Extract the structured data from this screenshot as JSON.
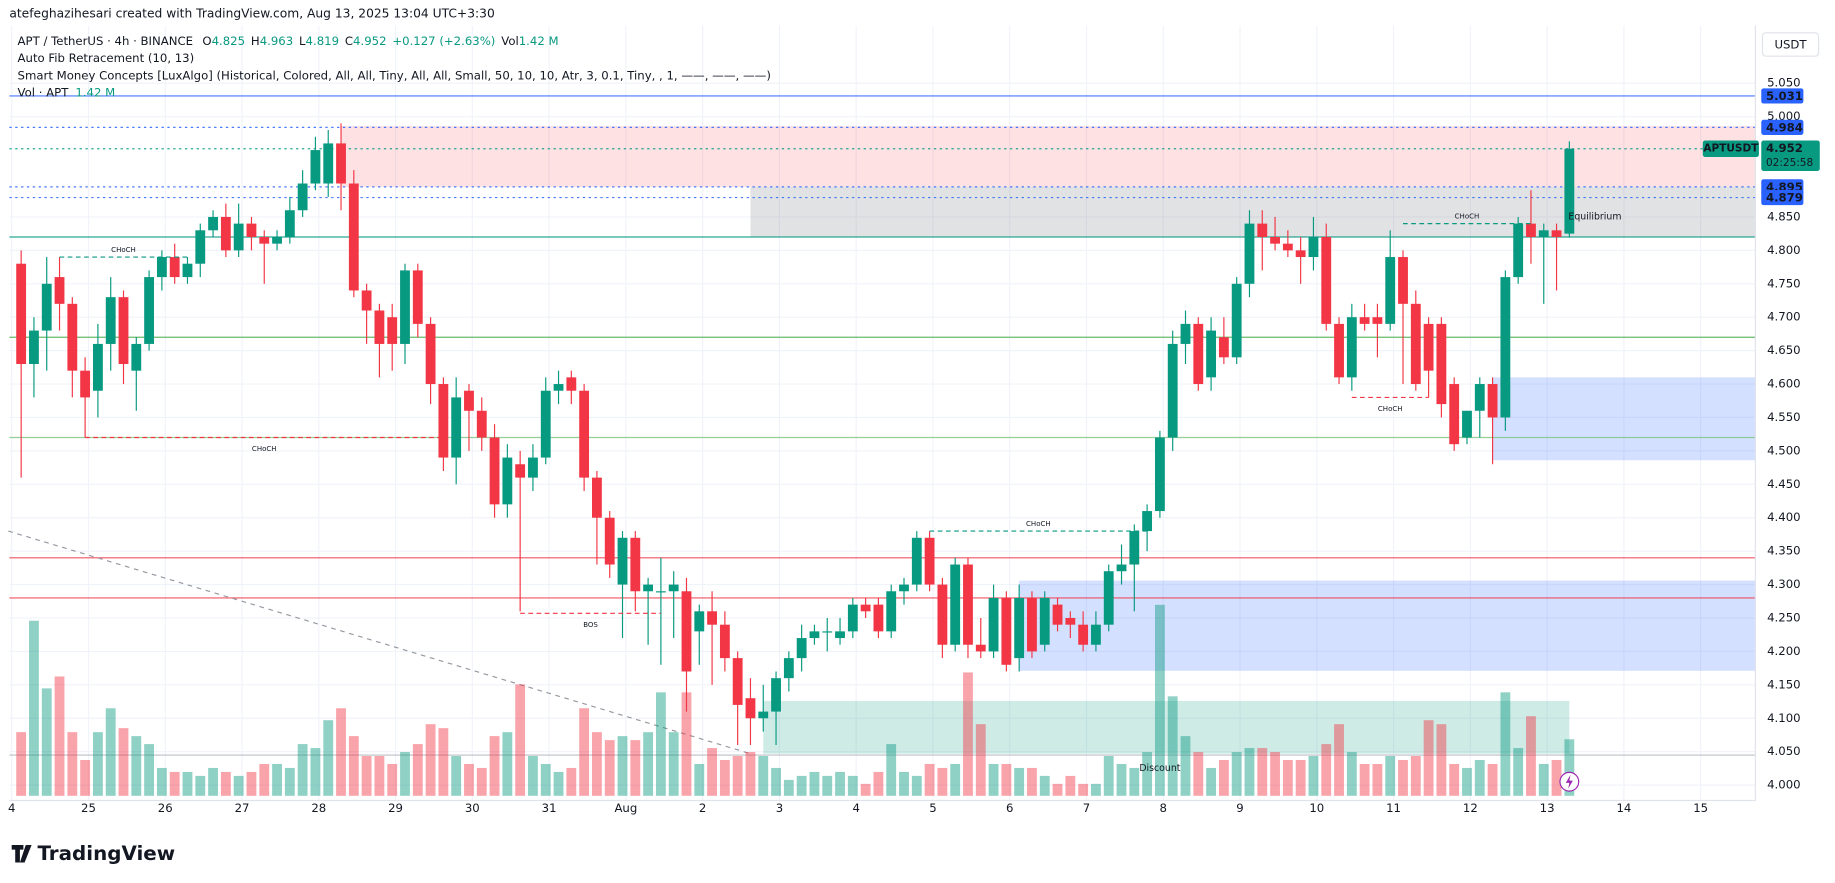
{
  "chart_data": {
    "type": "candlestick",
    "credit": "atefeghazihesari created with TradingView.com, Aug 13, 2025 13:04 UTC+3:30",
    "title": "APT / TetherUS · 4h · BINANCE",
    "ohlc": [
      {
        "label": "O",
        "value": 4.825
      },
      {
        "label": "H",
        "value": 4.963
      },
      {
        "label": "L",
        "value": 4.819
      },
      {
        "label": "C",
        "value": 4.952
      }
    ],
    "change": "+0.127 (+2.63%)",
    "volume_label": "Vol",
    "volume_value_label": "1.42 M",
    "indicators": [
      "Auto Fib Retracement (10, 13)",
      "Smart Money Concepts [LuxAlgo] (Historical, Colored, All, All, Tiny, All, All, Small, 50, 10, 10, Atr, 3, 0.1, Tiny, , 1, ——, ——, ——)"
    ],
    "volume_indicator": "Vol · APT",
    "currency": "USDT",
    "footer": "TradingView",
    "up_color": "#089981",
    "down_color": "#f23645",
    "grid": true,
    "x_labels": [
      "4",
      "25",
      "26",
      "27",
      "28",
      "29",
      "30",
      "31",
      "Aug",
      "2",
      "3",
      "4",
      "5",
      "6",
      "7",
      "8",
      "9",
      "10",
      "11",
      "12",
      "13",
      "14",
      "15"
    ],
    "ylim": [
      3.977,
      5.136
    ],
    "yticks": [
      {
        "value": 4.0,
        "label": "4.000"
      },
      {
        "value": 4.05,
        "label": "4.050"
      },
      {
        "value": 4.1,
        "label": "4.100"
      },
      {
        "value": 4.15,
        "label": "4.150"
      },
      {
        "value": 4.2,
        "label": "4.200"
      },
      {
        "value": 4.25,
        "label": "4.250"
      },
      {
        "value": 4.3,
        "label": "4.300"
      },
      {
        "value": 4.35,
        "label": "4.350"
      },
      {
        "value": 4.4,
        "label": "4.400"
      },
      {
        "value": 4.45,
        "label": "4.450"
      },
      {
        "value": 4.5,
        "label": "4.500"
      },
      {
        "value": 4.55,
        "label": "4.550"
      },
      {
        "value": 4.6,
        "label": "4.600"
      },
      {
        "value": 4.65,
        "label": "4.650"
      },
      {
        "value": 4.7,
        "label": "4.700"
      },
      {
        "value": 4.75,
        "label": "4.750"
      },
      {
        "value": 4.8,
        "label": "4.800"
      },
      {
        "value": 4.85,
        "label": "4.850"
      },
      {
        "value": 5.0,
        "label": "5.000"
      },
      {
        "value": 5.05,
        "label": "5.050"
      }
    ],
    "open": [
      4.78,
      4.63,
      4.68,
      4.76,
      4.72,
      4.62,
      4.59,
      4.66,
      4.73,
      4.62,
      4.66,
      4.76,
      4.79,
      4.76,
      4.78,
      4.83,
      4.85,
      4.8,
      4.84,
      4.82,
      4.81,
      4.82,
      4.86,
      4.9,
      4.9,
      4.96,
      4.9,
      4.74,
      4.71,
      4.7,
      4.66,
      4.77,
      4.69,
      4.6,
      4.49,
      4.59,
      4.56,
      4.52,
      4.42,
      4.48,
      4.46,
      4.49,
      4.59,
      4.61,
      4.59,
      4.46,
      4.4,
      4.3,
      4.37,
      4.29,
      4.29,
      4.29,
      4.29,
      4.23,
      4.26,
      4.24,
      4.19,
      4.13,
      4.1,
      4.11,
      4.16,
      4.19,
      4.22,
      4.23,
      4.22,
      4.23,
      4.27,
      4.27,
      4.23,
      4.29,
      4.3,
      4.37,
      4.3,
      4.21,
      4.33,
      4.21,
      4.2,
      4.28,
      4.19,
      4.28,
      4.21,
      4.27,
      4.25,
      4.24,
      4.21,
      4.24,
      4.32,
      4.33,
      4.38,
      4.41,
      4.52,
      4.66,
      4.69,
      4.61,
      4.67,
      4.64,
      4.75,
      4.84,
      4.82,
      4.81,
      4.8,
      4.79,
      4.82,
      4.69,
      4.61,
      4.7,
      4.7,
      4.69,
      4.79,
      4.72,
      4.69,
      4.69,
      4.6,
      4.52,
      4.56,
      4.6,
      4.55,
      4.76,
      4.84,
      4.82,
      4.83,
      4.825
    ],
    "high": [
      4.8,
      4.7,
      4.79,
      4.79,
      4.73,
      4.64,
      4.69,
      4.76,
      4.74,
      4.67,
      4.77,
      4.8,
      4.81,
      4.79,
      4.84,
      4.86,
      4.87,
      4.87,
      4.85,
      4.83,
      4.83,
      4.88,
      4.92,
      4.97,
      4.98,
      4.99,
      4.92,
      4.75,
      4.72,
      4.72,
      4.78,
      4.78,
      4.7,
      4.61,
      4.61,
      4.6,
      4.58,
      4.54,
      4.51,
      4.5,
      4.51,
      4.61,
      4.62,
      4.62,
      4.6,
      4.47,
      4.41,
      4.38,
      4.38,
      4.31,
      4.34,
      4.32,
      4.31,
      4.27,
      4.29,
      4.26,
      4.2,
      4.16,
      4.15,
      4.17,
      4.2,
      4.24,
      4.24,
      4.25,
      4.25,
      4.28,
      4.28,
      4.28,
      4.3,
      4.31,
      4.38,
      4.38,
      4.31,
      4.34,
      4.34,
      4.25,
      4.3,
      4.29,
      4.3,
      4.29,
      4.29,
      4.28,
      4.26,
      4.26,
      4.26,
      4.33,
      4.36,
      4.39,
      4.42,
      4.53,
      4.68,
      4.71,
      4.7,
      4.7,
      4.7,
      4.76,
      4.86,
      4.86,
      4.85,
      4.83,
      4.82,
      4.85,
      4.84,
      4.7,
      4.72,
      4.72,
      4.72,
      4.83,
      4.8,
      4.74,
      4.7,
      4.7,
      4.61,
      4.56,
      4.61,
      4.61,
      4.77,
      4.85,
      4.89,
      4.84,
      4.84,
      4.963
    ],
    "low": [
      4.46,
      4.58,
      4.62,
      4.68,
      4.58,
      4.52,
      4.55,
      4.62,
      4.6,
      4.56,
      4.65,
      4.74,
      4.75,
      4.75,
      4.76,
      4.82,
      4.79,
      4.79,
      4.8,
      4.75,
      4.8,
      4.81,
      4.85,
      4.89,
      4.88,
      4.86,
      4.73,
      4.66,
      4.61,
      4.62,
      4.63,
      4.67,
      4.57,
      4.47,
      4.45,
      4.5,
      4.5,
      4.4,
      4.4,
      4.26,
      4.44,
      4.48,
      4.57,
      4.57,
      4.44,
      4.33,
      4.31,
      4.22,
      4.26,
      4.21,
      4.18,
      4.22,
      4.11,
      4.18,
      4.15,
      4.17,
      4.06,
      4.06,
      4.08,
      4.06,
      4.14,
      4.17,
      4.21,
      4.2,
      4.21,
      4.22,
      4.25,
      4.22,
      4.22,
      4.27,
      4.29,
      4.29,
      4.19,
      4.2,
      4.19,
      4.19,
      4.19,
      4.17,
      4.17,
      4.19,
      4.2,
      4.23,
      4.22,
      4.2,
      4.2,
      4.23,
      4.3,
      4.26,
      4.35,
      4.4,
      4.5,
      4.63,
      4.59,
      4.59,
      4.63,
      4.63,
      4.73,
      4.77,
      4.8,
      4.79,
      4.75,
      4.77,
      4.68,
      4.6,
      4.59,
      4.68,
      4.64,
      4.68,
      4.6,
      4.59,
      4.58,
      4.55,
      4.5,
      4.51,
      4.52,
      4.48,
      4.53,
      4.75,
      4.78,
      4.72,
      4.74,
      4.819
    ],
    "close": [
      4.63,
      4.68,
      4.75,
      4.72,
      4.62,
      4.58,
      4.66,
      4.73,
      4.63,
      4.66,
      4.76,
      4.79,
      4.76,
      4.78,
      4.83,
      4.85,
      4.8,
      4.84,
      4.82,
      4.81,
      4.82,
      4.86,
      4.9,
      4.95,
      4.96,
      4.9,
      4.74,
      4.71,
      4.66,
      4.66,
      4.77,
      4.69,
      4.6,
      4.49,
      4.58,
      4.56,
      4.52,
      4.42,
      4.49,
      4.46,
      4.49,
      4.59,
      4.6,
      4.59,
      4.46,
      4.4,
      4.33,
      4.37,
      4.29,
      4.3,
      4.29,
      4.3,
      4.17,
      4.26,
      4.24,
      4.19,
      4.12,
      4.1,
      4.11,
      4.16,
      4.19,
      4.22,
      4.23,
      4.23,
      4.23,
      4.27,
      4.26,
      4.23,
      4.29,
      4.3,
      4.37,
      4.3,
      4.21,
      4.33,
      4.21,
      4.2,
      4.28,
      4.18,
      4.28,
      4.2,
      4.28,
      4.24,
      4.24,
      4.21,
      4.24,
      4.32,
      4.33,
      4.38,
      4.41,
      4.52,
      4.66,
      4.69,
      4.6,
      4.68,
      4.64,
      4.75,
      4.84,
      4.82,
      4.81,
      4.8,
      4.79,
      4.82,
      4.69,
      4.61,
      4.7,
      4.69,
      4.69,
      4.79,
      4.72,
      4.6,
      4.62,
      4.57,
      4.51,
      4.56,
      4.6,
      4.55,
      4.76,
      4.84,
      4.82,
      4.83,
      4.82,
      4.952
    ],
    "volume": [
      1.6,
      4.4,
      2.7,
      3.0,
      1.6,
      0.9,
      1.6,
      2.2,
      1.7,
      1.5,
      1.3,
      0.7,
      0.6,
      0.6,
      0.5,
      0.7,
      0.6,
      0.5,
      0.6,
      0.8,
      0.8,
      0.7,
      1.3,
      1.2,
      1.9,
      2.2,
      1.5,
      1.0,
      1.0,
      0.8,
      1.1,
      1.3,
      1.8,
      1.7,
      1.0,
      0.8,
      0.7,
      1.5,
      1.6,
      2.8,
      1.0,
      0.8,
      0.6,
      0.7,
      2.2,
      1.6,
      1.4,
      1.5,
      1.4,
      1.6,
      2.6,
      1.6,
      2.6,
      0.8,
      1.2,
      0.9,
      1.0,
      1.1,
      1.0,
      0.7,
      0.4,
      0.5,
      0.6,
      0.5,
      0.6,
      0.5,
      0.3,
      0.6,
      1.3,
      0.6,
      0.5,
      0.8,
      0.7,
      0.8,
      3.1,
      1.8,
      0.8,
      0.8,
      0.7,
      0.7,
      0.5,
      0.3,
      0.5,
      0.3,
      0.3,
      1.0,
      0.8,
      0.7,
      1.1,
      4.8,
      2.5,
      1.5,
      1.1,
      0.7,
      0.9,
      1.1,
      1.2,
      1.2,
      1.1,
      0.9,
      0.9,
      1.0,
      1.3,
      1.8,
      1.1,
      0.8,
      0.8,
      1.0,
      0.9,
      1.0,
      1.9,
      1.8,
      0.8,
      0.7,
      0.9,
      0.8,
      2.6,
      1.2,
      2.0,
      0.8,
      0.9,
      1.42
    ],
    "zones": [
      {
        "start": 25,
        "low": 4.895,
        "high": 4.986,
        "color": "rgba(242,54,69,0.15)",
        "extend": true
      },
      {
        "start": 57,
        "low": 4.82,
        "high": 4.895,
        "color": "rgba(120,123,134,0.22)",
        "extend": true
      },
      {
        "start": 78,
        "low": 4.171,
        "high": 4.306,
        "color": "rgba(41,98,255,0.2)",
        "extend": true
      },
      {
        "start": 115,
        "low": 4.486,
        "high": 4.61,
        "color": "rgba(41,98,255,0.2)",
        "extend": true
      },
      {
        "start": 58,
        "end": 121,
        "low": 4.047,
        "high": 4.126,
        "color": "rgba(8,153,129,0.2)",
        "extend": false
      }
    ],
    "levels": [
      {
        "value": 5.031,
        "color": "#2962ff",
        "style": "solid"
      },
      {
        "value": 4.984,
        "color": "#2962ff",
        "style": "dotted"
      },
      {
        "value": 4.952,
        "color": "#089981",
        "style": "dotted"
      },
      {
        "value": 4.895,
        "color": "#2962ff",
        "style": "dotted"
      },
      {
        "value": 4.879,
        "color": "#2962ff",
        "style": "dotted"
      },
      {
        "value": 4.82,
        "color": "#089981",
        "style": "solid"
      },
      {
        "value": 4.67,
        "color": "#4caf50",
        "style": "solid"
      },
      {
        "value": 4.52,
        "color": "#81c784",
        "style": "solid"
      },
      {
        "value": 4.34,
        "color": "#f23645",
        "style": "solid"
      },
      {
        "value": 4.28,
        "color": "#f23645",
        "style": "solid"
      },
      {
        "value": 4.045,
        "color": "#b2b5be",
        "style": "solid"
      }
    ],
    "structures": [
      {
        "label": "CHoCH",
        "value": 4.79,
        "from": 3,
        "to": 13,
        "color": "#089981",
        "side": "above"
      },
      {
        "label": "CHoCH",
        "value": 4.52,
        "from": 5,
        "to": 33,
        "color": "#f23645",
        "side": "below"
      },
      {
        "label": "BOS",
        "value": 4.257,
        "from": 39,
        "to": 50,
        "color": "#f23645",
        "side": "below"
      },
      {
        "label": "CHoCH",
        "value": 4.38,
        "from": 71,
        "to": 88,
        "color": "#089981",
        "side": "above"
      },
      {
        "label": "CHoCH",
        "value": 4.84,
        "from": 108,
        "to": 118,
        "color": "#089981",
        "side": "above"
      },
      {
        "label": "CHoCH",
        "value": 4.58,
        "from": 104,
        "to": 110,
        "color": "#f23645",
        "side": "below"
      }
    ],
    "trendline": {
      "from": [
        -1,
        4.38
      ],
      "to": [
        57,
        4.047
      ]
    },
    "zone_labels": [
      {
        "text": "Equilibrium",
        "at": 123,
        "value": 4.85,
        "color": "#9598a1"
      },
      {
        "text": "Discount",
        "at": 89,
        "value": 4.025,
        "color": "#089981"
      }
    ],
    "price_tags": [
      {
        "value": 5.031,
        "color": "#2962ff"
      },
      {
        "value": 4.984,
        "color": "#2962ff"
      },
      {
        "value": 4.895,
        "color": "#2962ff"
      },
      {
        "value": 4.879,
        "color": "#2962ff"
      }
    ],
    "last_price": {
      "name": "APTUSDT",
      "value": 4.952,
      "countdown": "02:25:58",
      "color": "#089981"
    }
  }
}
